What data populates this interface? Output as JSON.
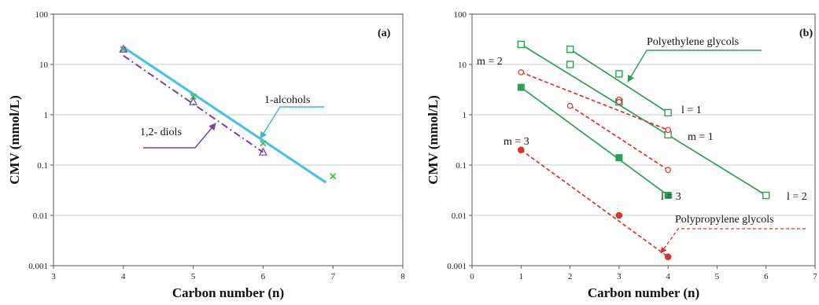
{
  "chart_data": [
    {
      "type": "line",
      "panel_label": "(a)",
      "xlabel": "Carbon number (n)",
      "ylabel": "CMV (mmol/L)",
      "xlim": [
        3,
        8
      ],
      "ylim": [
        0.001,
        100
      ],
      "yscale": "log",
      "x_ticks": [
        "3",
        "4",
        "5",
        "6",
        "7",
        "8"
      ],
      "y_ticks": [
        "0.001",
        "0.01",
        "0.1",
        "1",
        "10",
        "100"
      ],
      "grid": "horizontal",
      "series": [
        {
          "name": "1-alcohols",
          "color": "#3cb9d6",
          "marker": "none",
          "line": "solid",
          "fit": {
            "x": [
              4,
              6.9
            ],
            "y": [
              22,
              0.045
            ]
          }
        },
        {
          "name": "1-alcohols data",
          "color": "#4cbe4c",
          "marker": "x",
          "x": [
            4,
            5,
            6,
            7
          ],
          "y": [
            20,
            2.3,
            0.27,
            0.06
          ]
        },
        {
          "name": "1,2- diols",
          "color": "#7b3f9e",
          "marker": "triangle",
          "line": "dashdot",
          "x": [
            4,
            5,
            6
          ],
          "y": [
            20,
            1.8,
            0.18
          ],
          "fit": {
            "x": [
              4,
              6
            ],
            "y": [
              15,
              0.18
            ]
          }
        }
      ],
      "annotations": [
        "1-alcohols",
        "1,2- diols"
      ]
    },
    {
      "type": "line",
      "panel_label": "(b)",
      "xlabel": "Carbon number (n)",
      "ylabel": "CMV (mmol/L)",
      "xlim": [
        0,
        7
      ],
      "ylim": [
        0.001,
        100
      ],
      "yscale": "log",
      "x_ticks": [
        "0",
        "1",
        "2",
        "3",
        "4",
        "5",
        "6",
        "7"
      ],
      "y_ticks": [
        "0.001",
        "0.01",
        "0.1",
        "1",
        "10",
        "100"
      ],
      "grid": "horizontal",
      "series": [
        {
          "name": "m = 1",
          "group": "Polyethylene glycols",
          "color": "#2e9e56",
          "marker": "square-open",
          "line": "solid",
          "x": [
            1,
            2,
            3,
            4
          ],
          "y": [
            25,
            10,
            1.8,
            0.4
          ],
          "fit": {
            "x": [
              1,
              6
            ],
            "y": [
              25,
              0.025
            ]
          }
        },
        {
          "name": "l = 1",
          "group": "Polyethylene glycols",
          "color": "#2e9e56",
          "marker": "square-open",
          "line": "solid",
          "x": [
            2,
            3,
            4
          ],
          "y": [
            20,
            6.5,
            1.1
          ],
          "fit": {
            "x": [
              2,
              4
            ],
            "y": [
              20,
              1.1
            ]
          }
        },
        {
          "name": "l = 2",
          "group": "Polyethylene glycols",
          "color": "#2e9e56",
          "marker": "square-open",
          "line": "none",
          "x": [
            6
          ],
          "y": [
            0.025
          ]
        },
        {
          "name": "l = 3",
          "group": "Polyethylene glycols",
          "color": "#2e9e56",
          "marker": "square-filled",
          "line": "solid",
          "x": [
            1,
            3,
            4
          ],
          "y": [
            3.5,
            0.14,
            0.025
          ],
          "fit": {
            "x": [
              1,
              4
            ],
            "y": [
              3.5,
              0.025
            ]
          }
        },
        {
          "name": "m = 2",
          "group": "Polypropylene glycols",
          "color": "#d9342b",
          "marker": "circle-open",
          "line": "dashed",
          "x": [
            1,
            2,
            3,
            4
          ],
          "y": [
            7,
            1.5,
            2,
            0.5
          ],
          "fit": {
            "x": [
              1,
              4
            ],
            "y": [
              7,
              0.5
            ]
          }
        },
        {
          "name": "m = 2 (lower)",
          "group": "Polypropylene glycols",
          "color": "#d9342b",
          "marker": "circle-open",
          "line": "dashed",
          "x": [
            3,
            4
          ],
          "y": [
            1.8,
            0.08
          ],
          "fit": {
            "x": [
              2,
              4
            ],
            "y": [
              1.5,
              0.08
            ]
          }
        },
        {
          "name": "m = 3",
          "group": "Polypropylene glycols",
          "color": "#d9342b",
          "marker": "circle-filled",
          "line": "dashed",
          "x": [
            1,
            3,
            4
          ],
          "y": [
            0.2,
            0.01,
            0.0015
          ],
          "fit": {
            "x": [
              1,
              4
            ],
            "y": [
              0.2,
              0.0015
            ]
          }
        }
      ],
      "annotations": [
        "Polyethylene glycols",
        "Polypropylene glycols",
        "m = 2",
        "m = 3",
        "m = 1",
        "l = 1",
        "l = 2",
        "l = 3"
      ]
    }
  ]
}
